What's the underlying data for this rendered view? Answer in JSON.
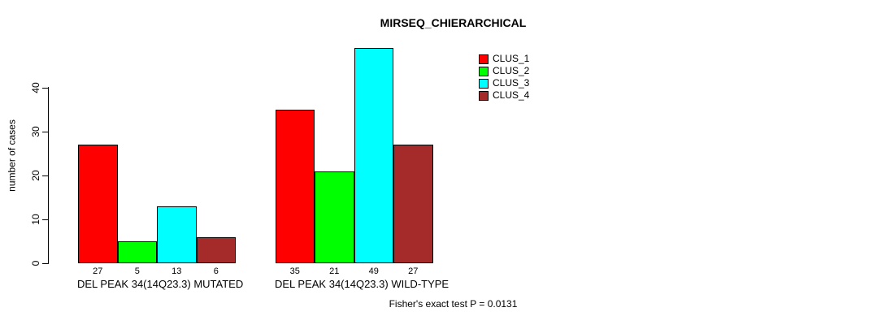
{
  "chart_data": {
    "type": "bar",
    "title": "MIRSEQ_CHIERARCHICAL",
    "ylabel": "number of cases",
    "xlabel": "",
    "ylim": [
      0,
      49
    ],
    "yticks": [
      0,
      10,
      20,
      30,
      40
    ],
    "grid": false,
    "legend_position": "top-right",
    "categories": [
      "DEL PEAK 34(14Q23.3) MUTATED",
      "DEL PEAK 34(14Q23.3) WILD-TYPE"
    ],
    "series": [
      {
        "name": "CLUS_1",
        "color": "#ff0000",
        "values": [
          27,
          35
        ]
      },
      {
        "name": "CLUS_2",
        "color": "#00ff00",
        "values": [
          5,
          21
        ]
      },
      {
        "name": "CLUS_3",
        "color": "#00ffff",
        "values": [
          13,
          49
        ]
      },
      {
        "name": "CLUS_4",
        "color": "#a52a2a",
        "values": [
          6,
          27
        ]
      }
    ],
    "show_bar_values": true,
    "bar_value_labels": [
      [
        27,
        5,
        13,
        6
      ],
      [
        35,
        21,
        49,
        27
      ]
    ],
    "annotation": "Fisher's exact test P = 0.0131"
  },
  "colors": {
    "background": "#ffffff",
    "text": "#000000",
    "bar_border": "#000000"
  }
}
